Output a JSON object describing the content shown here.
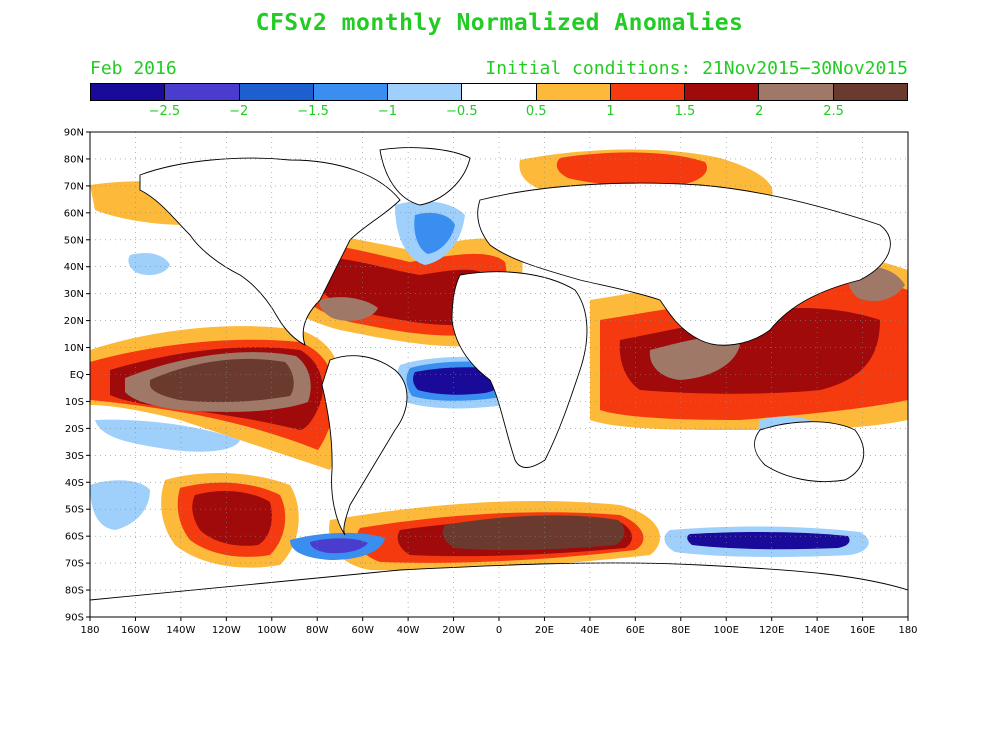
{
  "title": "CFSv2 monthly Normalized Anomalies",
  "subtitle_left": "Feb 2016",
  "subtitle_right": "Initial conditions: 21Nov2015−30Nov2015",
  "colorbar": {
    "colors": [
      "#1a0a9a",
      "#4a3ccc",
      "#1e5fd0",
      "#3a8ef0",
      "#9fd0fb",
      "#ffffff",
      "#fdb93a",
      "#f53a10",
      "#a00a0a",
      "#a07868",
      "#6a3a2e"
    ],
    "labels": [
      "−2.5",
      "−2",
      "−1.5",
      "−1",
      "−0.5",
      "0.5",
      "1",
      "1.5",
      "2",
      "2.5"
    ]
  },
  "map": {
    "lat_labels": [
      "90N",
      "80N",
      "70N",
      "60N",
      "50N",
      "40N",
      "30N",
      "20N",
      "10N",
      "EQ",
      "10S",
      "20S",
      "30S",
      "40S",
      "50S",
      "60S",
      "70S",
      "80S",
      "90S"
    ],
    "lon_labels": [
      "180",
      "160W",
      "140W",
      "120W",
      "100W",
      "80W",
      "60W",
      "40W",
      "20W",
      "0",
      "20E",
      "40E",
      "60E",
      "80E",
      "100E",
      "120E",
      "140E",
      "160E",
      "180"
    ]
  }
}
